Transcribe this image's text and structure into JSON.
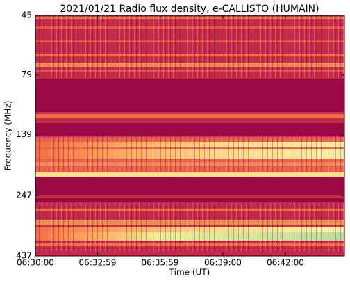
{
  "chart_data": {
    "type": "spectrogram",
    "title": "2021/01/21  Radio flux density, e-CALLISTO (HUMAIN)",
    "x_label": "Time (UT)",
    "y_label": "Frequency (MHz)",
    "xlim": [
      "06:30:00",
      "06:44:50"
    ],
    "xticks": [
      "06:30:00",
      "06:32:59",
      "06:35:59",
      "06:39:00",
      "06:42:00"
    ],
    "ylim": [
      437,
      45
    ],
    "yticks": [
      45,
      79,
      139,
      247,
      437
    ],
    "yscale": "log"
  }
}
